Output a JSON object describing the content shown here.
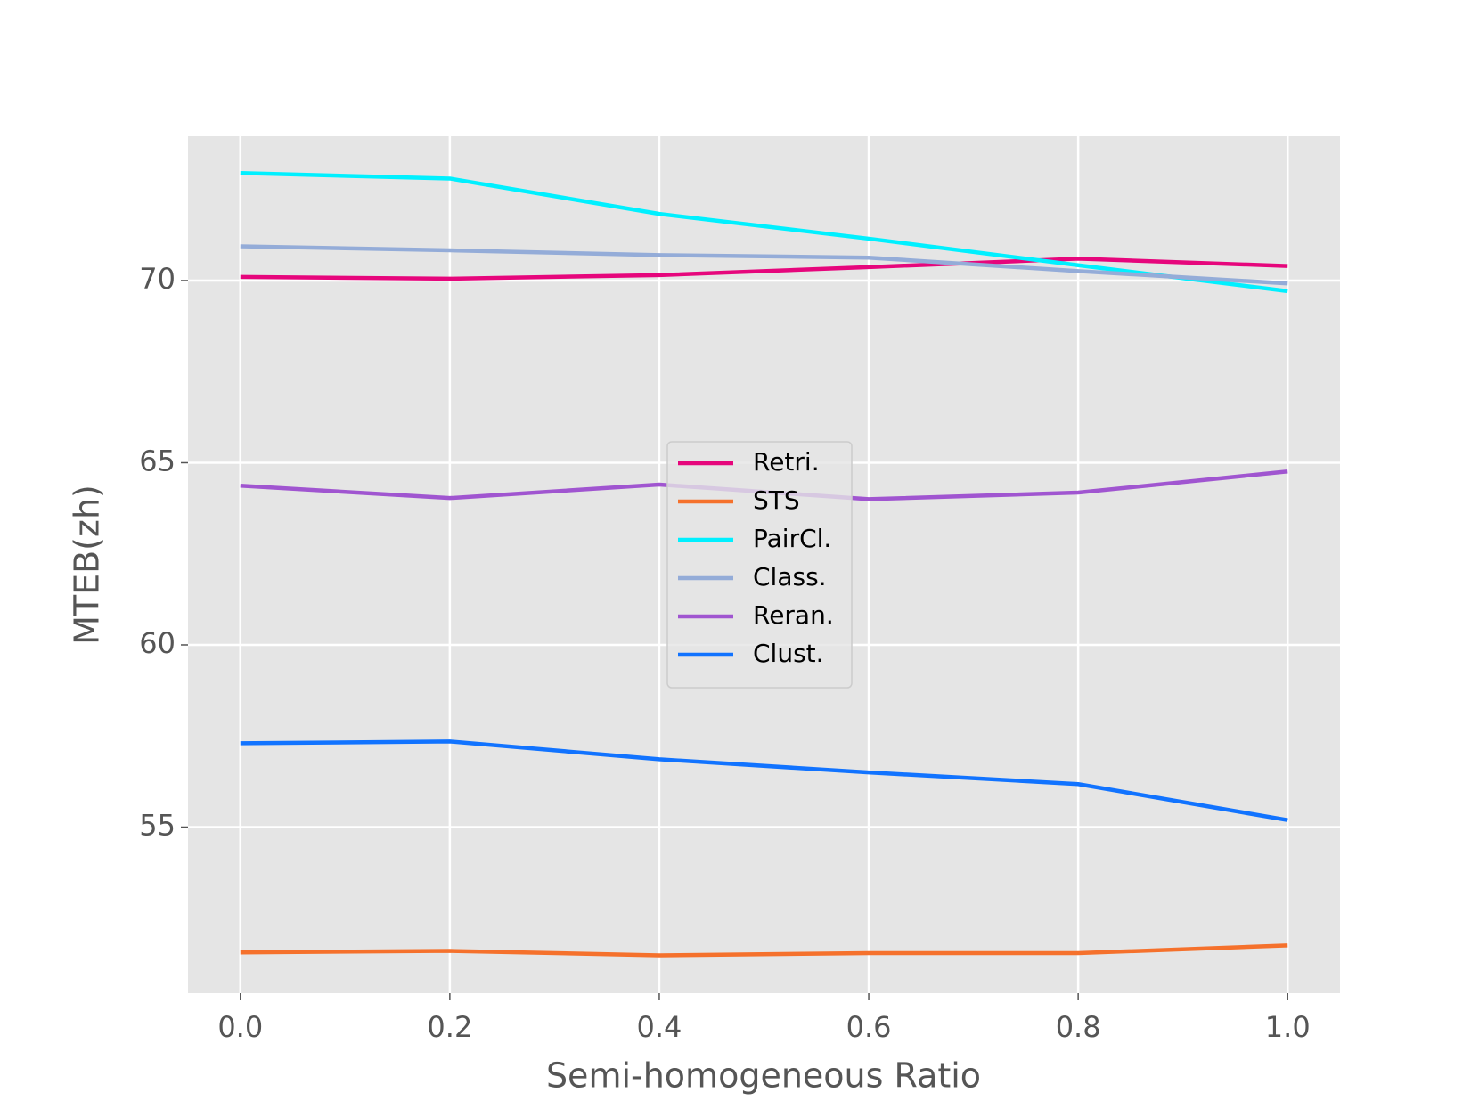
{
  "chart_data": {
    "type": "line",
    "xlabel": "Semi-homogeneous Ratio",
    "ylabel": "MTEB(zh)",
    "x": [
      0,
      0.2,
      0.4,
      0.6,
      0.8,
      1
    ],
    "series": [
      {
        "name": "Retri.",
        "color": "#e6067c",
        "values": [
          70.1,
          70.05,
          70.15,
          70.37,
          70.6,
          70.4
        ]
      },
      {
        "name": "STS",
        "color": "#f5712c",
        "values": [
          51.56,
          51.6,
          51.48,
          51.54,
          51.54,
          51.75
        ]
      },
      {
        "name": "PairCl.",
        "color": "#00f0ff",
        "values": [
          72.95,
          72.8,
          71.83,
          71.15,
          70.42,
          69.71
        ]
      },
      {
        "name": "Class.",
        "color": "#94acd8",
        "values": [
          70.94,
          70.83,
          70.7,
          70.63,
          70.26,
          69.92
        ]
      },
      {
        "name": "Reran.",
        "color": "#a055d0",
        "values": [
          64.37,
          64.03,
          64.4,
          64.0,
          64.18,
          64.76
        ]
      },
      {
        "name": "Clust.",
        "color": "#1173ff",
        "values": [
          57.3,
          57.35,
          56.86,
          56.5,
          56.18,
          55.19
        ]
      }
    ],
    "xlim": [
      -0.05,
      1.05
    ],
    "ylim": [
      50.44,
      73.96
    ],
    "xticks": [
      {
        "value": 0,
        "label": "0.0"
      },
      0.2,
      0.4,
      0.6,
      0.8,
      {
        "value": 1,
        "label": "1.0"
      }
    ],
    "yticks": [
      55,
      60,
      65,
      70
    ],
    "grid": true,
    "legend": "center"
  }
}
